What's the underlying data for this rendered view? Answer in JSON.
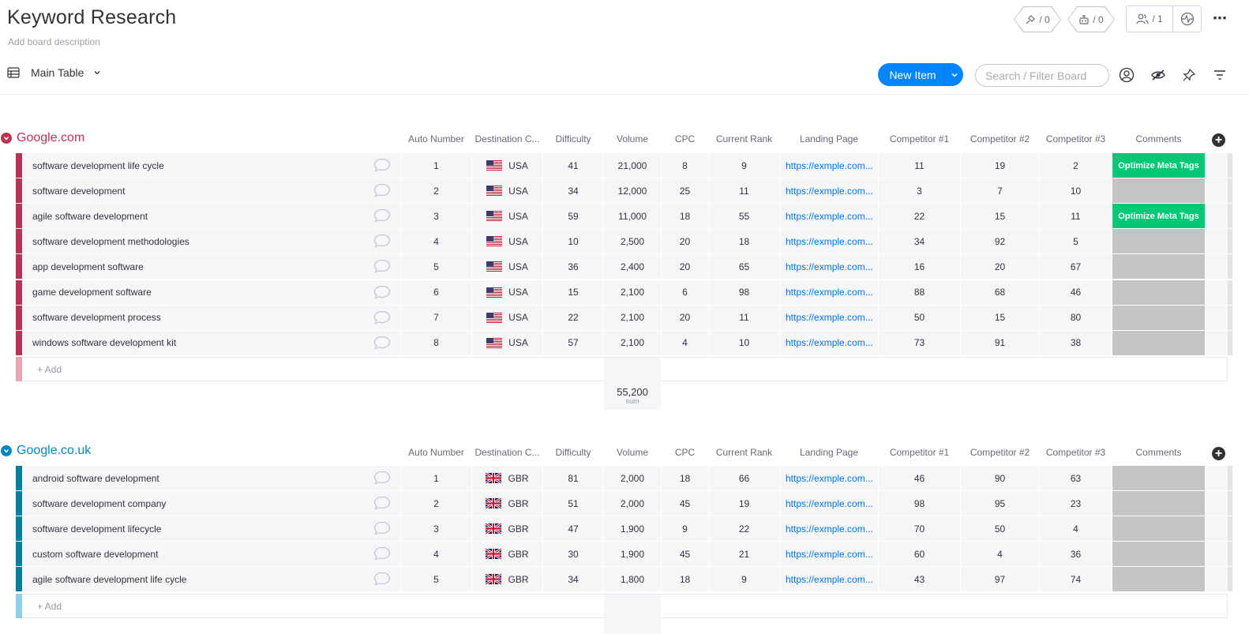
{
  "board": {
    "title": "Keyword Research",
    "description": "Add board description",
    "integrations_count": "/ 0",
    "automations_count": "/ 0",
    "members_count": "/ 1",
    "view_name": "Main Table",
    "new_item_label": "New Item",
    "search_placeholder": "Search / Filter Board",
    "add_row_label": "+ Add"
  },
  "columns": [
    "Auto Number",
    "Destination C...",
    "Difficulty",
    "Volume",
    "CPC",
    "Current Rank",
    "Landing Page",
    "Competitor #1",
    "Competitor #2",
    "Competitor #3",
    "Comments"
  ],
  "colors": {
    "google_com": "#bb3354",
    "google_com_light": "#e6a4b4",
    "google_co_uk": "#037f9f",
    "google_co_uk_title": "#0086c0",
    "google_co_uk_light": "#8ccfe6",
    "status_green": "#00c875",
    "status_empty": "#c4c4c4",
    "accent": "#0085ff"
  },
  "groups": [
    {
      "name": "Google.com",
      "sum_value": "55,200",
      "sum_label": "sum",
      "rows": [
        {
          "name": "software development life cycle",
          "num": "1",
          "country": "USA",
          "difficulty": "41",
          "volume": "21,000",
          "cpc": "8",
          "rank": "9",
          "landing": "https://exmple.com...",
          "c1": "11",
          "c2": "19",
          "c3": "2",
          "comment": "Optimize Meta Tags"
        },
        {
          "name": "software development",
          "num": "2",
          "country": "USA",
          "difficulty": "34",
          "volume": "12,000",
          "cpc": "25",
          "rank": "11",
          "landing": "https://exmple.com...",
          "c1": "3",
          "c2": "7",
          "c3": "10",
          "comment": ""
        },
        {
          "name": "agile software development",
          "num": "3",
          "country": "USA",
          "difficulty": "59",
          "volume": "11,000",
          "cpc": "18",
          "rank": "55",
          "landing": "https://exmple.com...",
          "c1": "22",
          "c2": "15",
          "c3": "11",
          "comment": "Optimize Meta Tags"
        },
        {
          "name": "software development methodologies",
          "num": "4",
          "country": "USA",
          "difficulty": "10",
          "volume": "2,500",
          "cpc": "20",
          "rank": "18",
          "landing": "https://exmple.com...",
          "c1": "34",
          "c2": "92",
          "c3": "5",
          "comment": ""
        },
        {
          "name": "app development software",
          "num": "5",
          "country": "USA",
          "difficulty": "36",
          "volume": "2,400",
          "cpc": "20",
          "rank": "65",
          "landing": "https://exmple.com...",
          "c1": "16",
          "c2": "20",
          "c3": "67",
          "comment": ""
        },
        {
          "name": "game development software",
          "num": "6",
          "country": "USA",
          "difficulty": "15",
          "volume": "2,100",
          "cpc": "6",
          "rank": "98",
          "landing": "https://exmple.com...",
          "c1": "88",
          "c2": "68",
          "c3": "46",
          "comment": ""
        },
        {
          "name": "software development process",
          "num": "7",
          "country": "USA",
          "difficulty": "22",
          "volume": "2,100",
          "cpc": "20",
          "rank": "11",
          "landing": "https://exmple.com...",
          "c1": "50",
          "c2": "15",
          "c3": "80",
          "comment": ""
        },
        {
          "name": "windows software development kit",
          "num": "8",
          "country": "USA",
          "difficulty": "57",
          "volume": "2,100",
          "cpc": "4",
          "rank": "10",
          "landing": "https://exmple.com...",
          "c1": "73",
          "c2": "91",
          "c3": "38",
          "comment": ""
        }
      ]
    },
    {
      "name": "Google.co.uk",
      "rows": [
        {
          "name": "android software development",
          "num": "1",
          "country": "GBR",
          "difficulty": "81",
          "volume": "2,000",
          "cpc": "18",
          "rank": "66",
          "landing": "https://exmple.com...",
          "c1": "46",
          "c2": "90",
          "c3": "63",
          "comment": ""
        },
        {
          "name": "software development company",
          "num": "2",
          "country": "GBR",
          "difficulty": "51",
          "volume": "2,000",
          "cpc": "45",
          "rank": "19",
          "landing": "https://exmple.com...",
          "c1": "98",
          "c2": "95",
          "c3": "23",
          "comment": ""
        },
        {
          "name": "software development lifecycle",
          "num": "3",
          "country": "GBR",
          "difficulty": "47",
          "volume": "1,900",
          "cpc": "9",
          "rank": "22",
          "landing": "https://exmple.com...",
          "c1": "70",
          "c2": "50",
          "c3": "4",
          "comment": ""
        },
        {
          "name": "custom software development",
          "num": "4",
          "country": "GBR",
          "difficulty": "30",
          "volume": "1,900",
          "cpc": "45",
          "rank": "21",
          "landing": "https://exmple.com...",
          "c1": "60",
          "c2": "4",
          "c3": "36",
          "comment": ""
        },
        {
          "name": "agile software development life cycle",
          "num": "5",
          "country": "GBR",
          "difficulty": "34",
          "volume": "1,800",
          "cpc": "18",
          "rank": "9",
          "landing": "https://exmple.com...",
          "c1": "43",
          "c2": "97",
          "c3": "74",
          "comment": ""
        }
      ]
    }
  ]
}
